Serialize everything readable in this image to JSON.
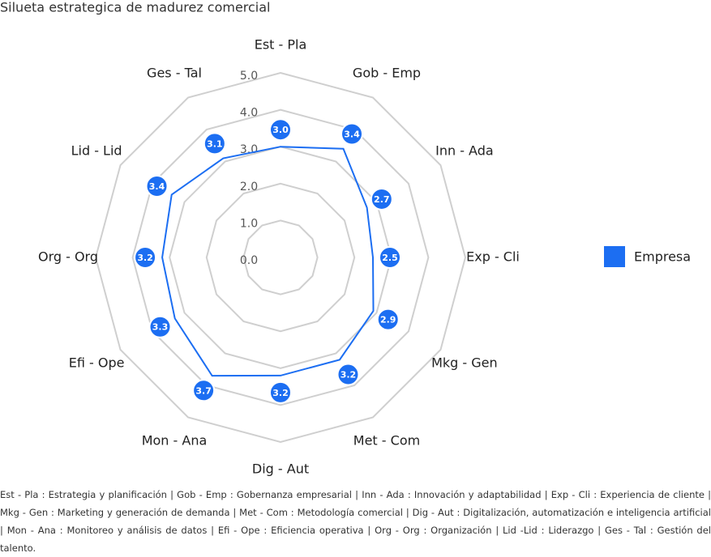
{
  "chart_data": {
    "type": "radar",
    "title": "Silueta estrategica de madurez comercial",
    "categories": [
      "Est - Pla",
      "Gob - Emp",
      "Inn - Ada",
      "Exp - Cli",
      "Mkg - Gen",
      "Met - Com",
      "Dig - Aut",
      "Mon - Ana",
      "Efi - Ope",
      "Org - Org",
      "Lid - Lid",
      "Ges - Tal"
    ],
    "series": [
      {
        "name": "Empresa",
        "color": "#1c6ef2",
        "values": [
          3.0,
          3.4,
          2.7,
          2.5,
          2.9,
          3.2,
          3.2,
          3.7,
          3.3,
          3.2,
          3.4,
          3.1
        ],
        "value_labels": [
          "3.0",
          "3.4",
          "2.7",
          "2.5",
          "2.9",
          "3.2",
          "3.2",
          "3.7",
          "3.3",
          "3.2",
          "3.4",
          "3.1"
        ]
      }
    ],
    "ylim": [
      0,
      5
    ],
    "yticks": [
      {
        "value": 0,
        "label": "0.0"
      },
      {
        "value": 1,
        "label": "1.0"
      },
      {
        "value": 2,
        "label": "2.0"
      },
      {
        "value": 3,
        "label": "3.0"
      },
      {
        "value": 4,
        "label": "4.0"
      },
      {
        "value": 5,
        "label": "5.0"
      }
    ],
    "grid": true,
    "legend": "right",
    "footnote": "Est - Pla : Estrategia y planificación | Gob - Emp : Gobernanza empresarial | Inn - Ada : Innovación y adaptabilidad | Exp - Cli : Experiencia de cliente | Mkg - Gen : Marketing y generación de demanda | Met - Com : Metodología comercial | Dig - Aut : Digitalización, automatización e inteligencia artificial | Mon - Ana : Monitoreo y análisis de datos | Efi - Ope : Eficiencia operativa | Org - Org : Organización | Lid -Lid : Liderazgo | Ges - Tal : Gestión del talento."
  }
}
